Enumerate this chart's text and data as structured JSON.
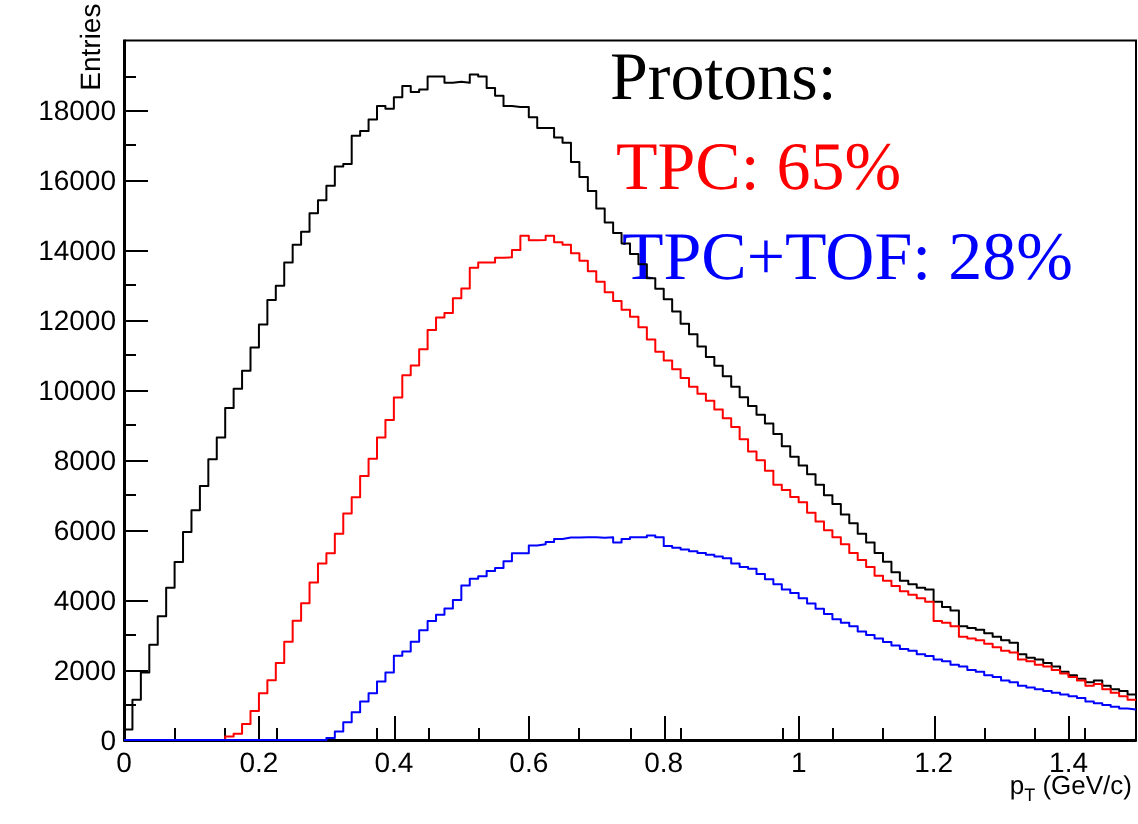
{
  "chart_data": {
    "type": "histogram",
    "bins": [
      0,
      0.0125,
      0.025,
      0.0375,
      0.05,
      0.0625,
      0.075,
      0.0875,
      0.1,
      0.1125,
      0.125,
      0.1375,
      0.15,
      0.1625,
      0.175,
      0.1875,
      0.2,
      0.2125,
      0.225,
      0.2375,
      0.25,
      0.2625,
      0.275,
      0.2875,
      0.3,
      0.3125,
      0.325,
      0.3375,
      0.35,
      0.3625,
      0.375,
      0.3875,
      0.4,
      0.4125,
      0.425,
      0.4375,
      0.45,
      0.4625,
      0.475,
      0.4875,
      0.5,
      0.5125,
      0.525,
      0.5375,
      0.55,
      0.5625,
      0.575,
      0.5875,
      0.6,
      0.6125,
      0.625,
      0.6375,
      0.65,
      0.6625,
      0.675,
      0.6875,
      0.7,
      0.7125,
      0.725,
      0.7375,
      0.75,
      0.7625,
      0.775,
      0.7875,
      0.8,
      0.8125,
      0.825,
      0.8375,
      0.85,
      0.8625,
      0.875,
      0.8875,
      0.9,
      0.9125,
      0.925,
      0.9375,
      0.95,
      0.9625,
      0.975,
      0.9875,
      1,
      1.0125,
      1.025,
      1.0375,
      1.05,
      1.0625,
      1.075,
      1.0875,
      1.1,
      1.1125,
      1.125,
      1.1375,
      1.15,
      1.1625,
      1.175,
      1.1875,
      1.2,
      1.2125,
      1.225,
      1.2375,
      1.25,
      1.2625,
      1.275,
      1.2875,
      1.3,
      1.3125,
      1.325,
      1.3375,
      1.35,
      1.3625,
      1.375,
      1.3875,
      1.4,
      1.4125,
      1.425,
      1.4375,
      1.45,
      1.4625,
      1.475,
      1.4875,
      1.5
    ],
    "series": [
      {
        "color": "#000000",
        "values": [
          300,
          1150,
          1930,
          2720,
          3540,
          4350,
          5090,
          5950,
          6570,
          7260,
          8030,
          8650,
          9490,
          10040,
          10560,
          11220,
          11880,
          12580,
          12990,
          13650,
          14160,
          14530,
          15060,
          15430,
          15850,
          16400,
          16470,
          17280,
          17410,
          17740,
          18130,
          18050,
          18380,
          18700,
          18530,
          18600,
          18970,
          18970,
          18790,
          18820,
          18790,
          19030,
          18970,
          18640,
          18420,
          18130,
          18100,
          18100,
          17810,
          17500,
          17500,
          17230,
          17080,
          16530,
          16100,
          15700,
          15200,
          14800,
          14500,
          14200,
          13900,
          13600,
          13200,
          12900,
          12600,
          12250,
          11900,
          11600,
          11250,
          10950,
          10700,
          10400,
          10100,
          9800,
          9550,
          9300,
          9050,
          8750,
          8400,
          8100,
          7850,
          7600,
          7300,
          7000,
          6750,
          6450,
          6200,
          5900,
          5650,
          5350,
          5100,
          4800,
          4550,
          4450,
          4350,
          4300,
          3950,
          3800,
          3700,
          3250,
          3200,
          3150,
          3050,
          2950,
          2850,
          2780,
          2450,
          2350,
          2300,
          2200,
          2100,
          1950,
          1850,
          1750,
          1650,
          1700,
          1550,
          1450,
          1400,
          1300
        ]
      },
      {
        "color": "#ff0000",
        "values": [
          0,
          0,
          0,
          0,
          0,
          0,
          0,
          0,
          0,
          0,
          0,
          0,
          100,
          180,
          460,
          830,
          1340,
          1710,
          2200,
          2810,
          3410,
          3910,
          4500,
          5050,
          5340,
          5900,
          6480,
          6940,
          7550,
          8040,
          8650,
          9150,
          9790,
          10430,
          10710,
          11170,
          11720,
          12080,
          12210,
          12630,
          12910,
          13500,
          13650,
          13650,
          13790,
          13800,
          14010,
          14420,
          14290,
          14300,
          14420,
          14230,
          14160,
          13920,
          13700,
          13400,
          13100,
          12800,
          12550,
          12300,
          12100,
          11800,
          11450,
          11100,
          10850,
          10600,
          10350,
          10100,
          9900,
          9700,
          9450,
          9200,
          8950,
          8600,
          8250,
          8000,
          7700,
          7300,
          7150,
          6950,
          6800,
          6500,
          6250,
          6000,
          5800,
          5600,
          5350,
          5150,
          4950,
          4700,
          4550,
          4400,
          4250,
          4150,
          4050,
          3950,
          3400,
          3350,
          3250,
          2950,
          2900,
          2850,
          2750,
          2650,
          2550,
          2500,
          2300,
          2250,
          2150,
          2100,
          2000,
          1900,
          1800,
          1700,
          1550,
          1600,
          1450,
          1350,
          1250,
          1150
        ]
      },
      {
        "color": "#0000ff",
        "values": [
          0,
          0,
          0,
          0,
          0,
          0,
          0,
          0,
          0,
          0,
          0,
          0,
          0,
          0,
          0,
          0,
          0,
          0,
          0,
          0,
          0,
          0,
          0,
          0,
          60,
          240,
          510,
          790,
          1100,
          1340,
          1670,
          1930,
          2410,
          2530,
          2810,
          3140,
          3400,
          3580,
          3760,
          4000,
          4420,
          4610,
          4680,
          4830,
          4920,
          5110,
          5340,
          5340,
          5560,
          5600,
          5660,
          5750,
          5790,
          5790,
          5800,
          5800,
          5780,
          5800,
          5650,
          5750,
          5800,
          5800,
          5850,
          5800,
          5550,
          5500,
          5450,
          5400,
          5350,
          5300,
          5250,
          5200,
          5050,
          4950,
          4900,
          4750,
          4600,
          4450,
          4300,
          4200,
          4050,
          3900,
          3750,
          3600,
          3450,
          3350,
          3250,
          3100,
          3000,
          2900,
          2800,
          2700,
          2600,
          2550,
          2450,
          2400,
          2300,
          2250,
          2150,
          2100,
          2000,
          1950,
          1850,
          1800,
          1700,
          1650,
          1550,
          1500,
          1450,
          1400,
          1350,
          1300,
          1250,
          1200,
          1100,
          1050,
          1000,
          950,
          900,
          870
        ]
      }
    ],
    "xlabel": "p$_{T}$ (GeV/c)",
    "ylabel": "Entries",
    "xlim": [
      0,
      1.5
    ],
    "xticks": [
      0,
      0.2,
      0.4,
      0.6,
      0.8,
      1,
      1.2,
      1.4
    ],
    "ylim": [
      0,
      20000
    ],
    "yticks": [
      0,
      2000,
      4000,
      6000,
      8000,
      10000,
      12000,
      14000,
      16000,
      18000
    ],
    "annotations": [
      "Protons:",
      "TPC: 65%",
      "TPC+TOF: 28%"
    ],
    "grid": false
  }
}
